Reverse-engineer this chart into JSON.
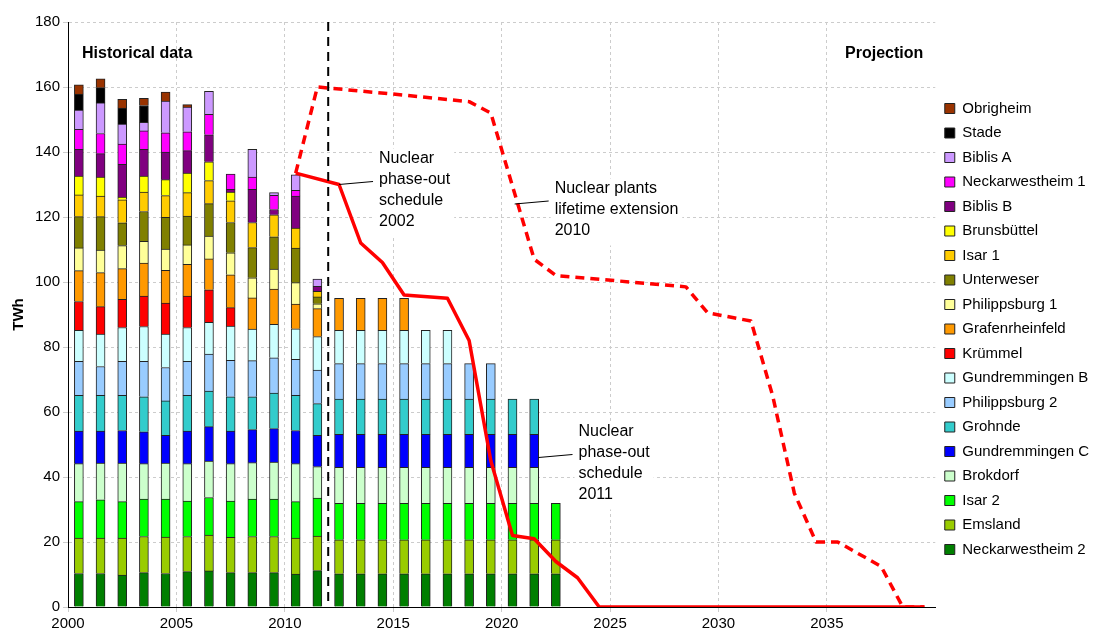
{
  "chart_data": {
    "type": "bar",
    "stacked": true,
    "ylabel": "TWh",
    "x": [
      2000.5,
      2001.5,
      2002.5,
      2003.5,
      2004.5,
      2005.5,
      2006.5,
      2007.5,
      2008.5,
      2009.5,
      2010.5,
      2011.5,
      2012.5,
      2013.5,
      2014.5,
      2015.5,
      2016.5,
      2017.5,
      2018.5,
      2019.5,
      2020.5,
      2021.5,
      2022.5
    ],
    "xlim": [
      2000,
      2040
    ],
    "xticks": [
      2000,
      2005,
      2010,
      2015,
      2020,
      2025,
      2030,
      2035
    ],
    "ylim": [
      0,
      180
    ],
    "yticks": [
      0,
      20,
      40,
      60,
      80,
      100,
      120,
      140,
      160,
      180
    ],
    "grid": true,
    "legend": "right",
    "marker": "none",
    "series": [
      {
        "name": "Neckarwestheim 2",
        "color": "#007f00",
        "values": [
          10.3,
          10.3,
          9.8,
          10.6,
          10.3,
          10.9,
          11.1,
          10.6,
          10.6,
          10.6,
          10.1,
          11.2,
          10.2,
          10.2,
          10.2,
          10.2,
          10.2,
          10.2,
          10.2,
          10.2,
          10.2,
          10.2,
          10.2
        ]
      },
      {
        "name": "Emsland",
        "color": "#99cc00",
        "values": [
          10.9,
          10.9,
          11.4,
          11.1,
          11.2,
          10.8,
          11.0,
          10.8,
          11.1,
          11.1,
          11.1,
          10.6,
          10.5,
          10.5,
          10.5,
          10.5,
          10.5,
          10.5,
          10.5,
          10.5,
          10.5,
          10.5,
          10.5
        ]
      },
      {
        "name": "Isar 2",
        "color": "#00ff00",
        "values": [
          11.2,
          11.8,
          11.2,
          11.5,
          11.7,
          10.9,
          11.6,
          11.2,
          11.5,
          11.5,
          11.2,
          11.7,
          11.2,
          11.2,
          11.2,
          11.2,
          11.2,
          11.2,
          11.2,
          11.2,
          11.2,
          11.2,
          11.2
        ]
      },
      {
        "name": "Brokdorf",
        "color": "#ccffcc",
        "values": [
          11.7,
          11.3,
          11.9,
          10.9,
          11.1,
          11.5,
          11.2,
          11.5,
          11.2,
          11.4,
          11.7,
          9.7,
          11.1,
          11.1,
          11.1,
          11.1,
          11.1,
          11.1,
          11.1,
          11.1,
          11.1,
          11.1,
          null
        ]
      },
      {
        "name": "Gundremmingen C",
        "color": "#0000ff",
        "values": [
          10.0,
          9.8,
          10.0,
          9.8,
          8.5,
          10.0,
          10.6,
          10.0,
          10.2,
          10.3,
          10.2,
          9.6,
          10.1,
          10.1,
          10.1,
          10.1,
          10.1,
          10.1,
          10.1,
          10.1,
          10.1,
          10.1,
          null
        ]
      },
      {
        "name": "Grohnde",
        "color": "#33cccc",
        "values": [
          11.0,
          11.0,
          10.8,
          10.8,
          10.6,
          11.0,
          10.9,
          10.6,
          10.1,
          10.9,
          10.8,
          9.8,
          10.9,
          10.9,
          10.9,
          10.9,
          10.9,
          10.9,
          10.9,
          10.9,
          10.9,
          10.9,
          null
        ]
      },
      {
        "name": "Philippsburg 2",
        "color": "#99ccff",
        "values": [
          10.5,
          8.9,
          10.5,
          10.9,
          10.3,
          10.5,
          11.4,
          11.2,
          11.1,
          10.9,
          11.1,
          10.3,
          10.9,
          10.9,
          10.9,
          10.9,
          10.9,
          10.9,
          10.9,
          10.9,
          null,
          null,
          null
        ]
      },
      {
        "name": "Gundremmingen B",
        "color": "#ccffff",
        "values": [
          9.5,
          10.0,
          10.4,
          10.7,
          10.3,
          10.4,
          9.8,
          10.5,
          9.7,
          10.3,
          9.4,
          10.3,
          10.2,
          10.2,
          10.2,
          10.2,
          10.2,
          10.2,
          null,
          null,
          null,
          null,
          null
        ]
      },
      {
        "name": "Krümmel",
        "color": "#ff0000",
        "values": [
          8.9,
          8.4,
          8.7,
          9.4,
          9.5,
          9.7,
          10.0,
          5.7,
          null,
          null,
          null,
          null,
          null,
          null,
          null,
          null,
          null,
          null,
          null,
          null,
          null,
          null,
          null
        ]
      },
      {
        "name": "Grafenrheinfeld",
        "color": "#ff9900",
        "values": [
          9.5,
          10.5,
          9.4,
          10.1,
          10.1,
          9.7,
          9.5,
          10.1,
          9.6,
          10.8,
          7.6,
          8.6,
          9.9,
          9.9,
          9.9,
          9.9,
          null,
          null,
          null,
          null,
          null,
          null,
          null
        ]
      },
      {
        "name": "Philippsburg 1",
        "color": "#ffff99",
        "values": [
          7.0,
          6.9,
          7.1,
          6.7,
          6.5,
          6.0,
          7.0,
          6.8,
          6.2,
          6.2,
          6.6,
          1.5,
          null,
          null,
          null,
          null,
          null,
          null,
          null,
          null,
          null,
          null,
          null
        ]
      },
      {
        "name": "Unterweser",
        "color": "#808000",
        "values": [
          9.6,
          10.3,
          7.0,
          9.2,
          9.8,
          8.9,
          10.0,
          9.3,
          9.3,
          9.9,
          10.6,
          2.1,
          null,
          null,
          null,
          null,
          null,
          null,
          null,
          null,
          null,
          null,
          null
        ]
      },
      {
        "name": "Isar 1",
        "color": "#ffcc00",
        "values": [
          6.7,
          6.3,
          7.1,
          6.0,
          6.7,
          7.2,
          7.1,
          6.7,
          7.7,
          6.8,
          6.2,
          1.7,
          null,
          null,
          null,
          null,
          null,
          null,
          null,
          null,
          null,
          null,
          null
        ]
      },
      {
        "name": "Brunsbüttel",
        "color": "#ffff00",
        "values": [
          5.8,
          5.9,
          0.8,
          4.9,
          4.9,
          6.0,
          5.8,
          2.7,
          null,
          null,
          null,
          null,
          null,
          null,
          null,
          null,
          null,
          null,
          null,
          null,
          null,
          null,
          null
        ]
      },
      {
        "name": "Biblis B",
        "color": "#800080",
        "values": [
          8.2,
          7.2,
          10.1,
          8.2,
          8.5,
          6.9,
          8.3,
          0.8,
          10.2,
          1.6,
          9.8,
          1.6,
          null,
          null,
          null,
          null,
          null,
          null,
          null,
          null,
          null,
          null,
          null
        ]
      },
      {
        "name": "Neckarwestheim 1",
        "color": "#ff00ff",
        "values": [
          6.2,
          6.2,
          6.2,
          5.7,
          5.9,
          5.8,
          6.3,
          4.7,
          3.8,
          4.4,
          1.8,
          null,
          null,
          null,
          null,
          null,
          null,
          null,
          null,
          null,
          null,
          null,
          null
        ]
      },
      {
        "name": "Biblis A",
        "color": "#cc99ff",
        "values": [
          5.9,
          9.4,
          6.2,
          2.6,
          9.8,
          7.6,
          7.1,
          null,
          8.5,
          0.8,
          4.8,
          2.2,
          null,
          null,
          null,
          null,
          null,
          null,
          null,
          null,
          null,
          null,
          null
        ]
      },
      {
        "name": "Stade",
        "color": "#000000",
        "values": [
          4.9,
          4.7,
          4.9,
          5.2,
          null,
          null,
          null,
          null,
          null,
          null,
          null,
          null,
          null,
          null,
          null,
          null,
          null,
          null,
          null,
          null,
          null,
          null,
          null
        ]
      },
      {
        "name": "Obrigheim",
        "color": "#993300",
        "values": [
          2.9,
          2.7,
          2.7,
          2.2,
          2.7,
          0.8,
          null,
          null,
          null,
          null,
          null,
          null,
          null,
          null,
          null,
          null,
          null,
          null,
          null,
          null,
          null,
          null,
          null
        ]
      },
      {
        "type": "line",
        "color": "#ff0000",
        "line_style": "solid",
        "x": [
          2010.5,
          2012.5,
          2013.5,
          2014.5,
          2015.5,
          2017.5,
          2018.5,
          2019.5,
          2020.5,
          2021.5,
          2022.5,
          2023.5,
          2024.5,
          2039.5
        ],
        "values": [
          133.5,
          130,
          112,
          106,
          96,
          95,
          82,
          45,
          22,
          21,
          14,
          9,
          0,
          0
        ]
      },
      {
        "type": "line",
        "color": "#ff0000",
        "line_style": "dashed",
        "x": [
          2010.5,
          2011.5,
          2015.5,
          2018.5,
          2019.5,
          2021.5,
          2022.5,
          2028.5,
          2029.5,
          2031.5,
          2032.5,
          2033.5,
          2034.5,
          2035.5,
          2037.5,
          2038.5,
          2039.5
        ],
        "values": [
          133.5,
          160,
          157.5,
          155.5,
          152,
          107,
          102,
          98.5,
          90.5,
          88,
          65,
          35,
          20,
          20,
          12.5,
          0,
          0
        ]
      }
    ],
    "ref_lines": [
      {
        "axis": "x",
        "value": 2012,
        "color": "#000000",
        "line_style": "dashed"
      }
    ],
    "annotations": [
      "Historical data",
      "Projection",
      {
        "text": "Nuclear\nphase-out\nschedule\n2002",
        "x": 2012.5,
        "y": 130
      },
      {
        "text": "Nuclear plants\nlifetime extension\n2010",
        "x": 2020.6,
        "y": 124
      },
      {
        "text": "Nuclear\nphase-out\nschedule\n2011",
        "x": 2021.7,
        "y": 46
      }
    ]
  }
}
